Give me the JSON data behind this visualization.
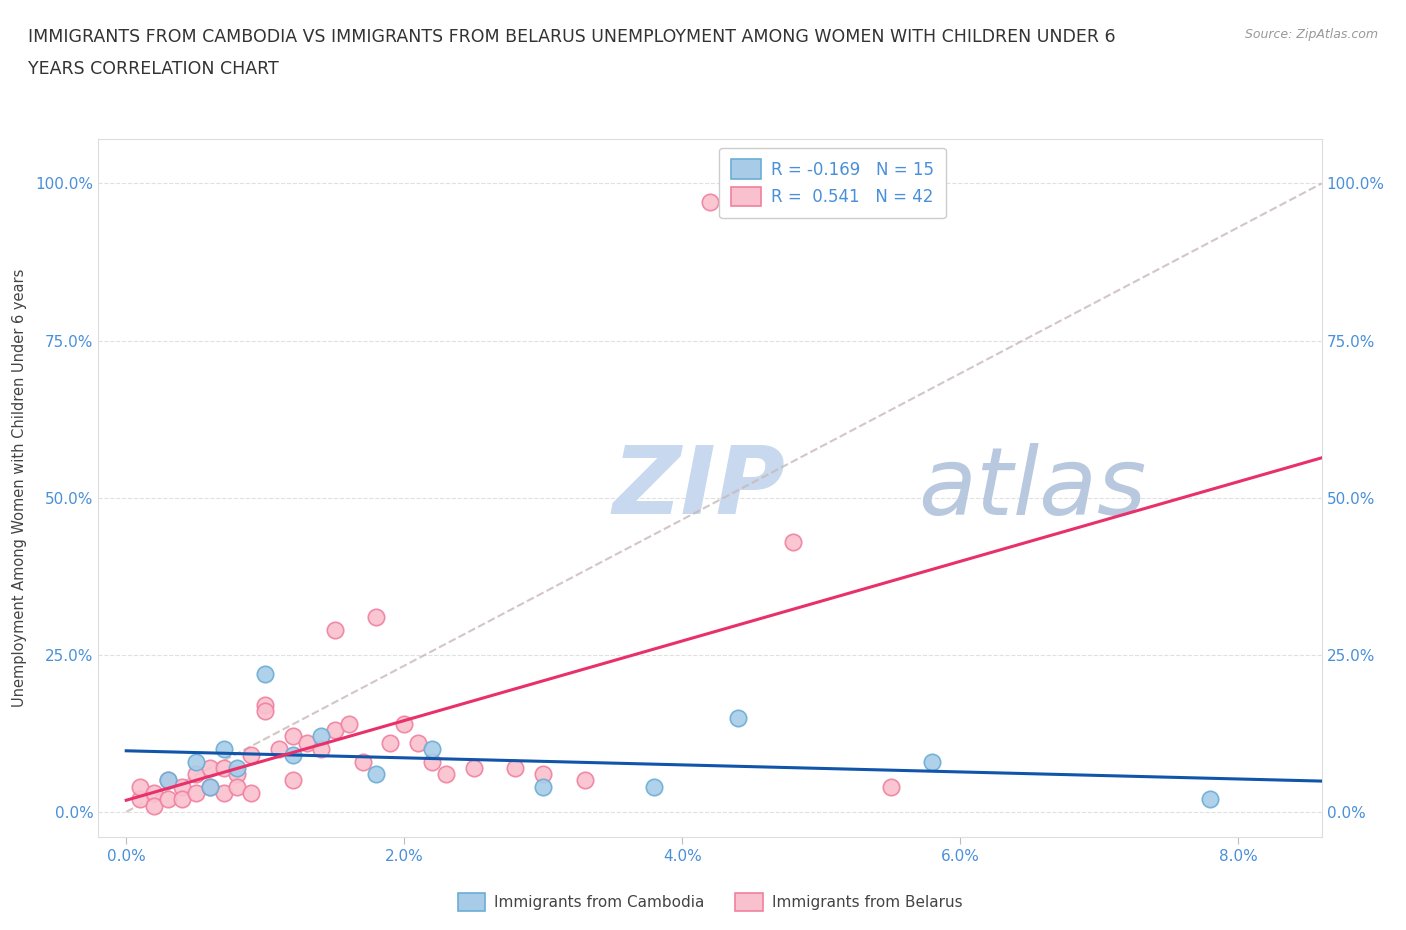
{
  "title_line1": "IMMIGRANTS FROM CAMBODIA VS IMMIGRANTS FROM BELARUS UNEMPLOYMENT AMONG WOMEN WITH CHILDREN UNDER 6",
  "title_line2": "YEARS CORRELATION CHART",
  "source": "Source: ZipAtlas.com",
  "ylabel": "Unemployment Among Women with Children Under 6 years",
  "xlabel_ticks": [
    "0.0%",
    "2.0%",
    "4.0%",
    "6.0%",
    "8.0%"
  ],
  "xlabel_vals": [
    0.0,
    0.02,
    0.04,
    0.06,
    0.08
  ],
  "ylabel_ticks": [
    "0.0%",
    "25.0%",
    "50.0%",
    "75.0%",
    "100.0%"
  ],
  "ylabel_vals": [
    0.0,
    0.25,
    0.5,
    0.75,
    1.0
  ],
  "xlim": [
    -0.002,
    0.086
  ],
  "ylim": [
    -0.04,
    1.07
  ],
  "cambodia_x": [
    0.003,
    0.005,
    0.006,
    0.007,
    0.008,
    0.01,
    0.012,
    0.014,
    0.018,
    0.022,
    0.03,
    0.038,
    0.044,
    0.058,
    0.078
  ],
  "cambodia_y": [
    0.05,
    0.08,
    0.04,
    0.1,
    0.07,
    0.22,
    0.09,
    0.12,
    0.06,
    0.1,
    0.04,
    0.04,
    0.15,
    0.08,
    0.02
  ],
  "belarus_x": [
    0.001,
    0.001,
    0.002,
    0.002,
    0.003,
    0.003,
    0.004,
    0.004,
    0.005,
    0.005,
    0.006,
    0.006,
    0.007,
    0.007,
    0.008,
    0.008,
    0.009,
    0.009,
    0.01,
    0.01,
    0.011,
    0.012,
    0.012,
    0.013,
    0.014,
    0.015,
    0.015,
    0.016,
    0.017,
    0.018,
    0.019,
    0.02,
    0.021,
    0.022,
    0.023,
    0.025,
    0.028,
    0.03,
    0.033,
    0.042,
    0.048,
    0.055
  ],
  "belarus_y": [
    0.02,
    0.04,
    0.03,
    0.01,
    0.05,
    0.02,
    0.04,
    0.02,
    0.06,
    0.03,
    0.07,
    0.04,
    0.07,
    0.03,
    0.06,
    0.04,
    0.09,
    0.03,
    0.17,
    0.16,
    0.1,
    0.12,
    0.05,
    0.11,
    0.1,
    0.29,
    0.13,
    0.14,
    0.08,
    0.31,
    0.11,
    0.14,
    0.11,
    0.08,
    0.06,
    0.07,
    0.07,
    0.06,
    0.05,
    0.97,
    0.43,
    0.04
  ],
  "cambodia_color": "#a8cce8",
  "cambodia_edge": "#6aaed6",
  "belarus_color": "#f9c0ce",
  "belarus_edge": "#f080a0",
  "R_cambodia": -0.169,
  "N_cambodia": 15,
  "R_belarus": 0.541,
  "N_belarus": 42,
  "trendline_color_cambodia": "#1155aa",
  "trendline_color_belarus": "#e8306a",
  "diagonal_color": "#c8b8b8",
  "watermark_zip": "ZIP",
  "watermark_atlas": "atlas",
  "watermark_color_zip": "#c8d8ee",
  "watermark_color_atlas": "#b8c8de",
  "grid_color": "#e0e0e0",
  "title_color": "#333333",
  "axis_color": "#4a90d9",
  "source_color": "#999999",
  "legend_label_color": "#4a90d9"
}
